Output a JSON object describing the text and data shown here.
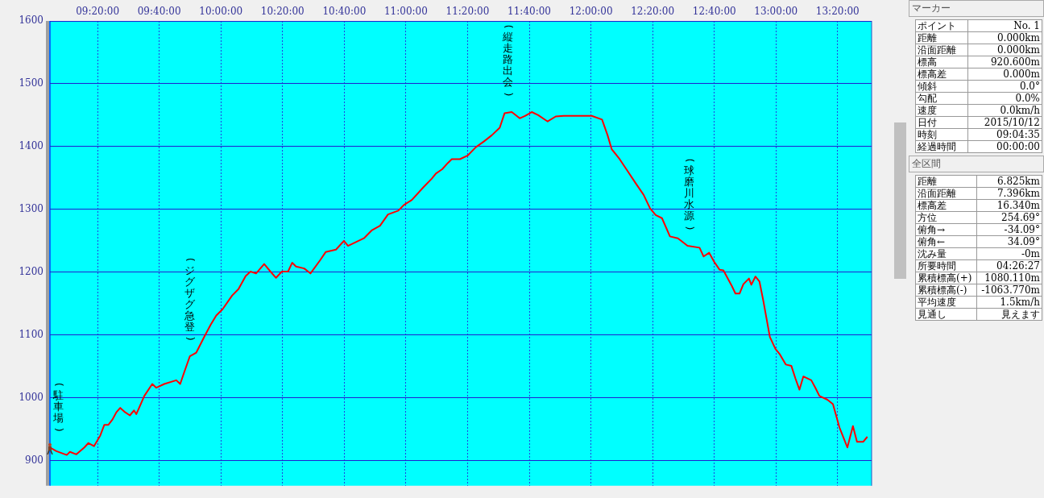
{
  "chart_data": [
    {
      "type": "line",
      "marker": "none",
      "grid": true,
      "x": [
        9.076,
        9.111,
        9.167,
        9.184,
        9.219,
        9.262,
        9.284,
        9.314,
        9.348,
        9.37,
        9.392,
        9.413,
        9.435,
        9.456,
        9.478,
        9.508,
        9.53,
        9.543,
        9.586,
        9.629,
        9.651,
        9.694,
        9.759,
        9.78,
        9.802,
        9.832,
        9.867,
        9.91,
        9.944,
        9.975,
        10.009,
        10.061,
        10.095,
        10.134,
        10.16,
        10.19,
        10.234,
        10.268,
        10.298,
        10.329,
        10.363,
        10.385,
        10.406,
        10.45,
        10.484,
        10.536,
        10.566,
        10.622,
        10.665,
        10.687,
        10.73,
        10.773,
        10.817,
        10.86,
        10.903,
        10.959,
        10.989,
        11.032,
        11.097,
        11.14,
        11.162,
        11.196,
        11.227,
        11.248,
        11.292,
        11.335,
        11.378,
        11.421,
        11.464,
        11.507,
        11.533,
        11.572,
        11.615,
        11.646,
        11.68,
        11.715,
        11.766,
        11.81,
        11.853,
        11.939,
        12.004,
        12.06,
        12.09,
        12.112,
        12.155,
        12.198,
        12.241,
        12.285,
        12.319,
        12.35,
        12.384,
        12.427,
        12.47,
        12.522,
        12.587,
        12.609,
        12.639,
        12.665,
        12.695,
        12.716,
        12.76,
        12.781,
        12.803,
        12.824,
        12.854,
        12.867,
        12.889,
        12.911,
        12.932,
        12.967,
        12.997,
        13.019,
        13.053,
        13.083,
        13.105,
        13.127,
        13.148,
        13.191,
        13.213,
        13.235,
        13.278,
        13.308,
        13.343,
        13.386,
        13.416,
        13.438,
        13.472,
        13.494
      ],
      "series": [
        {
          "color": "#ff0000",
          "values": [
            921,
            915,
            909,
            914,
            910,
            921,
            928,
            923,
            940,
            957,
            957,
            965,
            977,
            984,
            978,
            972,
            980,
            974,
            1003,
            1022,
            1016,
            1022,
            1028,
            1022,
            1041,
            1066,
            1072,
            1097,
            1116,
            1131,
            1141,
            1163,
            1173,
            1194,
            1201,
            1198,
            1213,
            1201,
            1191,
            1201,
            1201,
            1215,
            1209,
            1206,
            1198,
            1219,
            1232,
            1236,
            1250,
            1242,
            1248,
            1254,
            1267,
            1274,
            1292,
            1298,
            1307,
            1315,
            1336,
            1349,
            1357,
            1364,
            1374,
            1380,
            1380,
            1386,
            1399,
            1408,
            1418,
            1430,
            1453,
            1455,
            1445,
            1449,
            1455,
            1450,
            1440,
            1448,
            1449,
            1449,
            1449,
            1443,
            1418,
            1396,
            1380,
            1361,
            1342,
            1323,
            1302,
            1291,
            1286,
            1257,
            1254,
            1242,
            1239,
            1225,
            1231,
            1217,
            1204,
            1203,
            1179,
            1166,
            1166,
            1181,
            1190,
            1180,
            1193,
            1185,
            1154,
            1097,
            1078,
            1070,
            1053,
            1051,
            1031,
            1013,
            1034,
            1028,
            1016,
            1003,
            997,
            990,
            953,
            921,
            955,
            930,
            930,
            938
          ]
        }
      ],
      "xlim": [
        9.076,
        13.517
      ],
      "xticks": [
        {
          "value": 9.3333,
          "label": "09:20:00"
        },
        {
          "value": 9.6667,
          "label": "09:40:00"
        },
        {
          "value": 10,
          "label": "10:00:00"
        },
        {
          "value": 10.3333,
          "label": "10:20:00"
        },
        {
          "value": 10.6667,
          "label": "10:40:00"
        },
        {
          "value": 11,
          "label": "11:00:00"
        },
        {
          "value": 11.3333,
          "label": "11:20:00"
        },
        {
          "value": 11.6667,
          "label": "11:40:00"
        },
        {
          "value": 12,
          "label": "12:00:00"
        },
        {
          "value": 12.3333,
          "label": "12:20:00"
        },
        {
          "value": 12.6667,
          "label": "12:40:00"
        },
        {
          "value": 13,
          "label": "13:00:00"
        },
        {
          "value": 13.3333,
          "label": "13:20:00"
        }
      ],
      "ylim": [
        860,
        1600
      ],
      "yticks": [
        900,
        1000,
        1100,
        1200,
        1300,
        1400,
        1500,
        1600
      ],
      "annotations": [
        {
          "text": "(駐車場)",
          "x": 9.08,
          "y": 921
        },
        {
          "text": "(ジグザグ急登)",
          "x": 9.83,
          "y": 1066
        },
        {
          "text": "(縦走路出会)",
          "x": 11.55,
          "y": 1455
        },
        {
          "text": "(球磨川水源)",
          "x": 12.53,
          "y": 1242
        }
      ]
    },
    {
      "type": "other",
      "title": "マーカー",
      "categories": [
        "ポイント",
        "距離",
        "沿面距離",
        "標高",
        "標高差",
        "傾斜",
        "勾配",
        "速度",
        "日付",
        "時刻",
        "経過時間"
      ],
      "value_labels": [
        "No. 1",
        "0.000km",
        "0.000km",
        "920.600m",
        "0.000m",
        "0.0°",
        "0.0%",
        "0.0km/h",
        "2015/10/12",
        "09:04:35",
        "00:00:00"
      ]
    },
    {
      "type": "other",
      "title": "全区間",
      "categories": [
        "距離",
        "沿面距離",
        "標高差",
        "方位",
        "俯角→",
        "俯角←",
        "沈み量",
        "所要時間",
        "累積標高(+)",
        "累積標高(-)",
        "平均速度",
        "見通し"
      ],
      "value_labels": [
        "6.825km",
        "7.396km",
        "16.340m",
        "254.69°",
        "-34.09°",
        "34.09°",
        "-0m",
        "04:26:27",
        "1080.110m",
        "-1063.770m",
        "1.5km/h",
        "見えます"
      ]
    }
  ]
}
